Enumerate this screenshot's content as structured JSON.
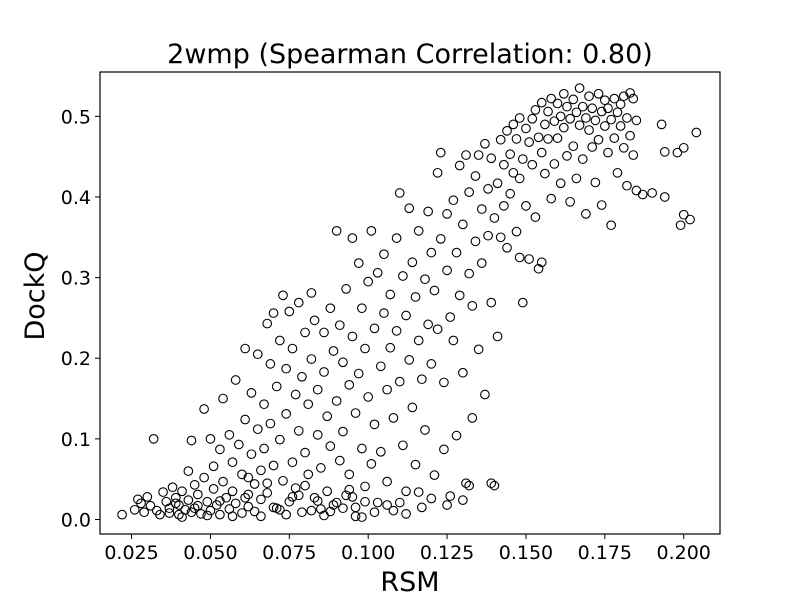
{
  "chart_data": {
    "type": "scatter",
    "title": "2wmp (Spearman Correlation: 0.80)",
    "xlabel": "RSM",
    "ylabel": "DockQ",
    "xlim": [
      0.015,
      0.2115
    ],
    "ylim": [
      -0.018,
      0.555
    ],
    "xticks": [
      0.025,
      0.05,
      0.075,
      0.1,
      0.125,
      0.15,
      0.175,
      0.2
    ],
    "xtick_labels": [
      "0.025",
      "0.050",
      "0.075",
      "0.100",
      "0.125",
      "0.150",
      "0.175",
      "0.200"
    ],
    "yticks": [
      0.0,
      0.1,
      0.2,
      0.3,
      0.4,
      0.5
    ],
    "ytick_labels": [
      "0.0",
      "0.1",
      "0.2",
      "0.3",
      "0.4",
      "0.5"
    ],
    "grid": false,
    "legend": "none",
    "marker": "open-circle",
    "marker_color": "#000000",
    "points": [
      [
        0.022,
        0.006
      ],
      [
        0.026,
        0.012
      ],
      [
        0.027,
        0.025
      ],
      [
        0.028,
        0.02
      ],
      [
        0.029,
        0.009
      ],
      [
        0.03,
        0.028
      ],
      [
        0.031,
        0.017
      ],
      [
        0.032,
        0.1
      ],
      [
        0.033,
        0.011
      ],
      [
        0.034,
        0.006
      ],
      [
        0.035,
        0.034
      ],
      [
        0.036,
        0.022
      ],
      [
        0.037,
        0.014
      ],
      [
        0.037,
        0.008
      ],
      [
        0.038,
        0.04
      ],
      [
        0.039,
        0.027
      ],
      [
        0.04,
        0.018
      ],
      [
        0.04,
        0.006
      ],
      [
        0.041,
        0.035
      ],
      [
        0.042,
        0.012
      ],
      [
        0.043,
        0.06
      ],
      [
        0.043,
        0.024
      ],
      [
        0.044,
        0.098
      ],
      [
        0.044,
        0.009
      ],
      [
        0.045,
        0.043
      ],
      [
        0.046,
        0.017
      ],
      [
        0.046,
        0.031
      ],
      [
        0.047,
        0.007
      ],
      [
        0.048,
        0.137
      ],
      [
        0.048,
        0.052
      ],
      [
        0.049,
        0.022
      ],
      [
        0.05,
        0.1
      ],
      [
        0.05,
        0.011
      ],
      [
        0.051,
        0.066
      ],
      [
        0.051,
        0.038
      ],
      [
        0.052,
        0.018
      ],
      [
        0.053,
        0.087
      ],
      [
        0.053,
        0.006
      ],
      [
        0.054,
        0.15
      ],
      [
        0.054,
        0.047
      ],
      [
        0.055,
        0.027
      ],
      [
        0.056,
        0.105
      ],
      [
        0.056,
        0.013
      ],
      [
        0.057,
        0.071
      ],
      [
        0.057,
        0.035
      ],
      [
        0.058,
        0.173
      ],
      [
        0.058,
        0.02
      ],
      [
        0.059,
        0.093
      ],
      [
        0.06,
        0.056
      ],
      [
        0.06,
        0.008
      ],
      [
        0.061,
        0.212
      ],
      [
        0.061,
        0.124
      ],
      [
        0.062,
        0.031
      ],
      [
        0.062,
        0.016
      ],
      [
        0.063,
        0.157
      ],
      [
        0.063,
        0.081
      ],
      [
        0.064,
        0.044
      ],
      [
        0.064,
        0.01
      ],
      [
        0.065,
        0.205
      ],
      [
        0.065,
        0.112
      ],
      [
        0.066,
        0.061
      ],
      [
        0.066,
        0.025
      ],
      [
        0.067,
        0.143
      ],
      [
        0.067,
        0.088
      ],
      [
        0.068,
        0.243
      ],
      [
        0.068,
        0.033
      ],
      [
        0.069,
        0.193
      ],
      [
        0.069,
        0.119
      ],
      [
        0.07,
        0.256
      ],
      [
        0.07,
        0.067
      ],
      [
        0.071,
        0.014
      ],
      [
        0.071,
        0.165
      ],
      [
        0.072,
        0.222
      ],
      [
        0.072,
        0.099
      ],
      [
        0.073,
        0.048
      ],
      [
        0.073,
        0.278
      ],
      [
        0.074,
        0.187
      ],
      [
        0.074,
        0.131
      ],
      [
        0.075,
        0.022
      ],
      [
        0.075,
        0.258
      ],
      [
        0.076,
        0.071
      ],
      [
        0.076,
        0.212
      ],
      [
        0.077,
        0.155
      ],
      [
        0.077,
        0.039
      ],
      [
        0.078,
        0.11
      ],
      [
        0.078,
        0.269
      ],
      [
        0.079,
        0.177
      ],
      [
        0.079,
        0.009
      ],
      [
        0.08,
        0.232
      ],
      [
        0.08,
        0.083
      ],
      [
        0.081,
        0.143
      ],
      [
        0.081,
        0.056
      ],
      [
        0.082,
        0.281
      ],
      [
        0.082,
        0.199
      ],
      [
        0.083,
        0.027
      ],
      [
        0.083,
        0.247
      ],
      [
        0.084,
        0.105
      ],
      [
        0.084,
        0.161
      ],
      [
        0.085,
        0.064
      ],
      [
        0.085,
        0.013
      ],
      [
        0.086,
        0.232
      ],
      [
        0.086,
        0.183
      ],
      [
        0.087,
        0.128
      ],
      [
        0.087,
        0.035
      ],
      [
        0.088,
        0.262
      ],
      [
        0.088,
        0.091
      ],
      [
        0.089,
        0.209
      ],
      [
        0.089,
        0.018
      ],
      [
        0.09,
        0.358
      ],
      [
        0.09,
        0.147
      ],
      [
        0.091,
        0.073
      ],
      [
        0.091,
        0.241
      ],
      [
        0.092,
        0.195
      ],
      [
        0.092,
        0.109
      ],
      [
        0.093,
        0.03
      ],
      [
        0.093,
        0.286
      ],
      [
        0.094,
        0.167
      ],
      [
        0.094,
        0.056
      ],
      [
        0.095,
        0.349
      ],
      [
        0.095,
        0.227
      ],
      [
        0.096,
        0.132
      ],
      [
        0.096,
        0.015
      ],
      [
        0.097,
        0.318
      ],
      [
        0.097,
        0.181
      ],
      [
        0.098,
        0.088
      ],
      [
        0.098,
        0.262
      ],
      [
        0.099,
        0.041
      ],
      [
        0.099,
        0.212
      ],
      [
        0.1,
        0.295
      ],
      [
        0.1,
        0.152
      ],
      [
        0.101,
        0.069
      ],
      [
        0.101,
        0.358
      ],
      [
        0.102,
        0.237
      ],
      [
        0.102,
        0.118
      ],
      [
        0.103,
        0.021
      ],
      [
        0.103,
        0.306
      ],
      [
        0.104,
        0.19
      ],
      [
        0.104,
        0.084
      ],
      [
        0.105,
        0.329
      ],
      [
        0.105,
        0.256
      ],
      [
        0.106,
        0.161
      ],
      [
        0.106,
        0.047
      ],
      [
        0.107,
        0.279
      ],
      [
        0.107,
        0.213
      ],
      [
        0.108,
        0.126
      ],
      [
        0.108,
        0.011
      ],
      [
        0.109,
        0.349
      ],
      [
        0.109,
        0.234
      ],
      [
        0.11,
        0.405
      ],
      [
        0.11,
        0.171
      ],
      [
        0.111,
        0.092
      ],
      [
        0.111,
        0.302
      ],
      [
        0.112,
        0.253
      ],
      [
        0.112,
        0.035
      ],
      [
        0.113,
        0.386
      ],
      [
        0.113,
        0.198
      ],
      [
        0.114,
        0.139
      ],
      [
        0.114,
        0.319
      ],
      [
        0.115,
        0.068
      ],
      [
        0.115,
        0.276
      ],
      [
        0.116,
        0.222
      ],
      [
        0.116,
        0.358
      ],
      [
        0.117,
        0.174
      ],
      [
        0.117,
        0.015
      ],
      [
        0.118,
        0.298
      ],
      [
        0.118,
        0.111
      ],
      [
        0.119,
        0.242
      ],
      [
        0.119,
        0.382
      ],
      [
        0.12,
        0.331
      ],
      [
        0.12,
        0.193
      ],
      [
        0.121,
        0.055
      ],
      [
        0.121,
        0.284
      ],
      [
        0.122,
        0.43
      ],
      [
        0.122,
        0.236
      ],
      [
        0.123,
        0.455
      ],
      [
        0.123,
        0.348
      ],
      [
        0.124,
        0.17
      ],
      [
        0.124,
        0.087
      ],
      [
        0.125,
        0.379
      ],
      [
        0.125,
        0.309
      ],
      [
        0.126,
        0.251
      ],
      [
        0.126,
        0.029
      ],
      [
        0.127,
        0.396
      ],
      [
        0.127,
        0.222
      ],
      [
        0.128,
        0.104
      ],
      [
        0.128,
        0.331
      ],
      [
        0.129,
        0.278
      ],
      [
        0.129,
        0.439
      ],
      [
        0.13,
        0.366
      ],
      [
        0.13,
        0.182
      ],
      [
        0.131,
        0.045
      ],
      [
        0.131,
        0.452
      ],
      [
        0.132,
        0.406
      ],
      [
        0.132,
        0.305
      ],
      [
        0.133,
        0.265
      ],
      [
        0.133,
        0.126
      ],
      [
        0.134,
        0.426
      ],
      [
        0.134,
        0.345
      ],
      [
        0.135,
        0.211
      ],
      [
        0.135,
        0.452
      ],
      [
        0.136,
        0.385
      ],
      [
        0.136,
        0.318
      ],
      [
        0.137,
        0.155
      ],
      [
        0.137,
        0.466
      ],
      [
        0.138,
        0.41
      ],
      [
        0.138,
        0.352
      ],
      [
        0.139,
        0.269
      ],
      [
        0.139,
        0.448
      ],
      [
        0.14,
        0.374
      ],
      [
        0.14,
        0.042
      ],
      [
        0.141,
        0.227
      ],
      [
        0.141,
        0.417
      ],
      [
        0.142,
        0.471
      ],
      [
        0.142,
        0.35
      ],
      [
        0.143,
        0.389
      ],
      [
        0.143,
        0.44
      ],
      [
        0.144,
        0.482
      ],
      [
        0.144,
        0.337
      ],
      [
        0.145,
        0.453
      ],
      [
        0.145,
        0.404
      ],
      [
        0.146,
        0.49
      ],
      [
        0.146,
        0.43
      ],
      [
        0.147,
        0.357
      ],
      [
        0.147,
        0.472
      ],
      [
        0.148,
        0.423
      ],
      [
        0.148,
        0.498
      ],
      [
        0.149,
        0.269
      ],
      [
        0.149,
        0.447
      ],
      [
        0.15,
        0.389
      ],
      [
        0.15,
        0.485
      ],
      [
        0.151,
        0.468
      ],
      [
        0.151,
        0.323
      ],
      [
        0.152,
        0.497
      ],
      [
        0.152,
        0.44
      ],
      [
        0.153,
        0.375
      ],
      [
        0.153,
        0.508
      ],
      [
        0.154,
        0.474
      ],
      [
        0.154,
        0.311
      ],
      [
        0.155,
        0.455
      ],
      [
        0.155,
        0.517
      ],
      [
        0.156,
        0.49
      ],
      [
        0.156,
        0.429
      ],
      [
        0.157,
        0.506
      ],
      [
        0.157,
        0.472
      ],
      [
        0.158,
        0.398
      ],
      [
        0.158,
        0.522
      ],
      [
        0.159,
        0.494
      ],
      [
        0.159,
        0.441
      ],
      [
        0.16,
        0.516
      ],
      [
        0.16,
        0.473
      ],
      [
        0.161,
        0.5
      ],
      [
        0.161,
        0.417
      ],
      [
        0.162,
        0.528
      ],
      [
        0.162,
        0.486
      ],
      [
        0.163,
        0.451
      ],
      [
        0.163,
        0.512
      ],
      [
        0.164,
        0.394
      ],
      [
        0.164,
        0.497
      ],
      [
        0.165,
        0.521
      ],
      [
        0.165,
        0.463
      ],
      [
        0.166,
        0.505
      ],
      [
        0.166,
        0.423
      ],
      [
        0.167,
        0.535
      ],
      [
        0.167,
        0.489
      ],
      [
        0.168,
        0.512
      ],
      [
        0.168,
        0.447
      ],
      [
        0.169,
        0.498
      ],
      [
        0.169,
        0.379
      ],
      [
        0.17,
        0.525
      ],
      [
        0.17,
        0.483
      ],
      [
        0.171,
        0.51
      ],
      [
        0.171,
        0.462
      ],
      [
        0.172,
        0.495
      ],
      [
        0.172,
        0.418
      ],
      [
        0.173,
        0.528
      ],
      [
        0.173,
        0.471
      ],
      [
        0.174,
        0.506
      ],
      [
        0.174,
        0.39
      ],
      [
        0.175,
        0.52
      ],
      [
        0.175,
        0.488
      ],
      [
        0.176,
        0.455
      ],
      [
        0.176,
        0.51
      ],
      [
        0.177,
        0.496
      ],
      [
        0.177,
        0.365
      ],
      [
        0.178,
        0.522
      ],
      [
        0.178,
        0.473
      ],
      [
        0.179,
        0.505
      ],
      [
        0.179,
        0.43
      ],
      [
        0.18,
        0.515
      ],
      [
        0.18,
        0.488
      ],
      [
        0.181,
        0.461
      ],
      [
        0.181,
        0.525
      ],
      [
        0.182,
        0.498
      ],
      [
        0.182,
        0.414
      ],
      [
        0.183,
        0.529
      ],
      [
        0.183,
        0.476
      ],
      [
        0.184,
        0.452
      ],
      [
        0.184,
        0.522
      ],
      [
        0.185,
        0.495
      ],
      [
        0.185,
        0.408
      ],
      [
        0.187,
        0.403
      ],
      [
        0.19,
        0.405
      ],
      [
        0.193,
        0.49
      ],
      [
        0.194,
        0.456
      ],
      [
        0.194,
        0.4
      ],
      [
        0.198,
        0.455
      ],
      [
        0.199,
        0.365
      ],
      [
        0.2,
        0.461
      ],
      [
        0.2,
        0.378
      ],
      [
        0.202,
        0.372
      ],
      [
        0.204,
        0.48
      ],
      [
        0.098,
        0.003
      ],
      [
        0.102,
        0.009
      ],
      [
        0.106,
        0.018
      ],
      [
        0.11,
        0.021
      ],
      [
        0.112,
        0.007
      ],
      [
        0.116,
        0.034
      ],
      [
        0.12,
        0.026
      ],
      [
        0.125,
        0.018
      ],
      [
        0.13,
        0.024
      ],
      [
        0.132,
        0.042
      ],
      [
        0.139,
        0.045
      ],
      [
        0.148,
        0.325
      ],
      [
        0.155,
        0.319
      ],
      [
        0.057,
        0.004
      ],
      [
        0.061,
        0.027
      ],
      [
        0.066,
        0.004
      ],
      [
        0.07,
        0.015
      ],
      [
        0.074,
        0.006
      ],
      [
        0.078,
        0.03
      ],
      [
        0.082,
        0.011
      ],
      [
        0.086,
        0.005
      ],
      [
        0.09,
        0.021
      ],
      [
        0.094,
        0.037
      ],
      [
        0.096,
        0.004
      ],
      [
        0.053,
        0.023
      ],
      [
        0.049,
        0.005
      ],
      [
        0.045,
        0.014
      ],
      [
        0.041,
        0.003
      ],
      [
        0.039,
        0.02
      ],
      [
        0.062,
        0.052
      ],
      [
        0.068,
        0.045
      ],
      [
        0.072,
        0.012
      ],
      [
        0.076,
        0.028
      ],
      [
        0.08,
        0.042
      ],
      [
        0.084,
        0.023
      ],
      [
        0.088,
        0.01
      ],
      [
        0.092,
        0.014
      ],
      [
        0.095,
        0.028
      ],
      [
        0.099,
        0.022
      ]
    ]
  }
}
